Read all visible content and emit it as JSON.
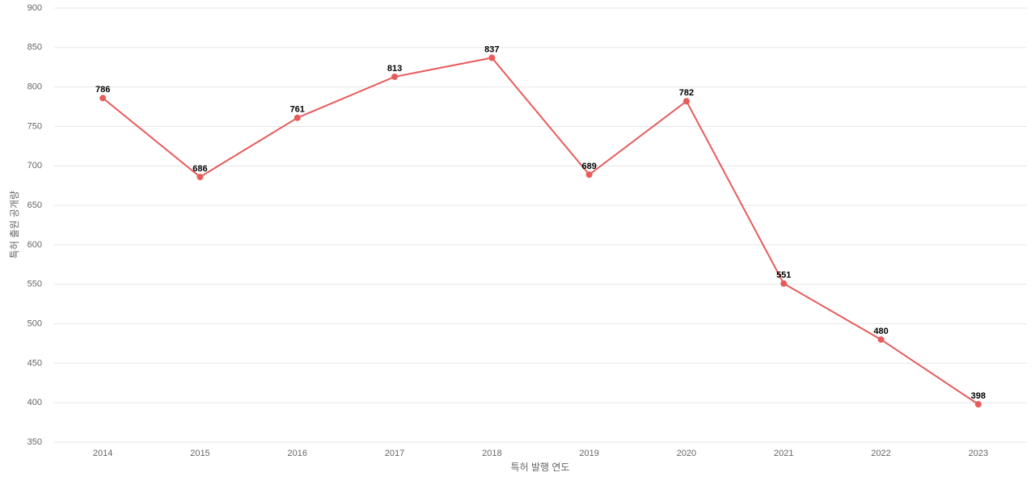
{
  "chart_data": {
    "type": "line",
    "x_label": "특허 발행 연도",
    "y_label": "특허 출원 공개량",
    "categories": [
      "2014",
      "2015",
      "2016",
      "2017",
      "2018",
      "2019",
      "2020",
      "2021",
      "2022",
      "2023"
    ],
    "values": [
      786,
      686,
      761,
      813,
      837,
      689,
      782,
      551,
      480,
      398
    ],
    "color": "#e85b5b",
    "ylim": [
      350,
      900
    ],
    "yticks": [
      350,
      400,
      450,
      500,
      550,
      600,
      650,
      700,
      750,
      800,
      850,
      900
    ],
    "grid": true
  }
}
